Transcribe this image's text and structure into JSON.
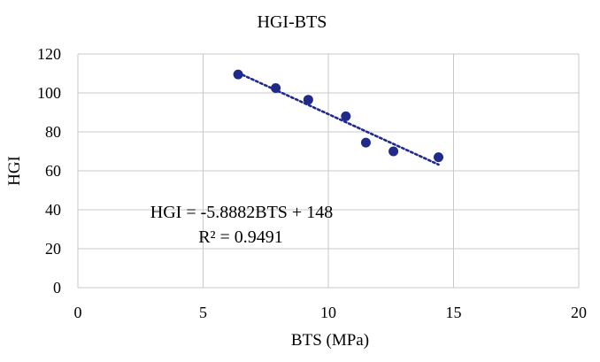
{
  "chart_data": {
    "type": "scatter",
    "title": "HGI-BTS",
    "xlabel": "BTS (MPa)",
    "ylabel": "HGI",
    "xlim": [
      0,
      20
    ],
    "ylim": [
      0,
      120
    ],
    "x_ticks": [
      0,
      5,
      10,
      15,
      20
    ],
    "y_ticks": [
      0,
      20,
      40,
      60,
      80,
      100,
      120
    ],
    "grid": true,
    "legend": "none",
    "series": [
      {
        "points": [
          {
            "x": 6.4,
            "y": 109.5
          },
          {
            "x": 7.9,
            "y": 102.5
          },
          {
            "x": 9.2,
            "y": 96.5
          },
          {
            "x": 10.7,
            "y": 88
          },
          {
            "x": 11.5,
            "y": 74.5
          },
          {
            "x": 12.6,
            "y": 70
          },
          {
            "x": 14.4,
            "y": 67
          }
        ],
        "color": "#1f2a8a"
      }
    ],
    "trendline": {
      "type": "linear",
      "slope": -5.8882,
      "intercept": 148,
      "x_range": [
        6.4,
        14.4
      ],
      "style": "dotted",
      "color": "#1f2a8a"
    },
    "annotations": {
      "equation": "HGI = -5.8882BTS + 148",
      "r_squared": "R² = 0.9491"
    }
  }
}
